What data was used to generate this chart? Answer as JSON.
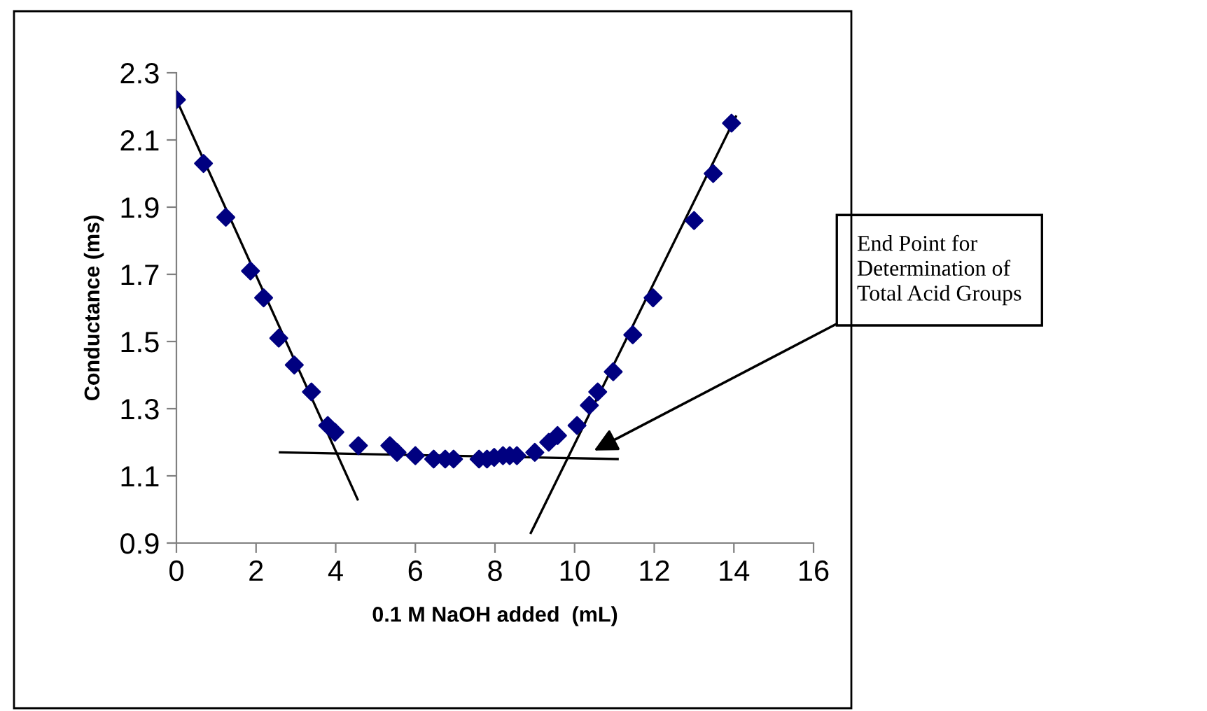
{
  "chart_data": {
    "type": "scatter",
    "xlabel": "0.1 M NaOH added  (mL)",
    "ylabel": "Conductance (ms)",
    "xlim": [
      0,
      16
    ],
    "ylim": [
      0.9,
      2.3
    ],
    "xticks": [
      0,
      2,
      4,
      6,
      8,
      10,
      12,
      14,
      16
    ],
    "yticks": [
      0.9,
      1.1,
      1.3,
      1.5,
      1.7,
      1.9,
      2.1,
      2.3
    ],
    "grid": false,
    "legend": false,
    "marker": "diamond",
    "series": [
      {
        "color": "#000080",
        "x": [
          0,
          0.68,
          1.24,
          1.86,
          2.19,
          2.57,
          2.96,
          3.39,
          3.8,
          3.98,
          4.57,
          5.36,
          5.54,
          6.0,
          6.46,
          6.75,
          6.96,
          7.6,
          7.8,
          7.98,
          8.2,
          8.37,
          8.55,
          9.0,
          9.35,
          9.57,
          10.06,
          10.37,
          10.58,
          10.97,
          11.46,
          11.97,
          13.0,
          13.48,
          13.94
        ],
        "values": [
          2.22,
          2.03,
          1.87,
          1.71,
          1.63,
          1.51,
          1.43,
          1.35,
          1.25,
          1.23,
          1.19,
          1.19,
          1.17,
          1.16,
          1.15,
          1.15,
          1.15,
          1.15,
          1.15,
          1.155,
          1.16,
          1.16,
          1.16,
          1.17,
          1.2,
          1.22,
          1.25,
          1.31,
          1.35,
          1.41,
          1.52,
          1.63,
          1.86,
          2.0,
          2.15
        ]
      },
      {
        "type": "line",
        "marker": "none",
        "color": "#000000",
        "x": [
          0,
          4.55
        ],
        "values": [
          2.22,
          1.03
        ]
      },
      {
        "type": "line",
        "marker": "none",
        "color": "#000000",
        "x": [
          2.6,
          11.08
        ],
        "values": [
          1.17,
          1.15
        ]
      },
      {
        "type": "line",
        "marker": "none",
        "color": "#000000",
        "x": [
          8.9,
          14.05
        ],
        "values": [
          0.93,
          2.17
        ]
      }
    ],
    "annotations": [
      {
        "text": "End Point for\nDetermination of\nTotal Acid Groups",
        "x": 10.4,
        "y": 1.17
      }
    ]
  }
}
